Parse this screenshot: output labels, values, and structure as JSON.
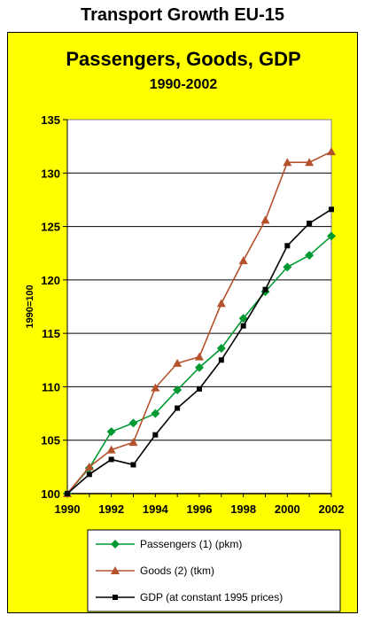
{
  "page_title": "Transport Growth EU-15",
  "chart_data": {
    "type": "line",
    "title": "Passengers, Goods, GDP",
    "subtitle": "1990-2002",
    "xlabel": "",
    "ylabel": "1990=100",
    "x": [
      1990,
      1991,
      1992,
      1993,
      1994,
      1995,
      1996,
      1997,
      1998,
      1999,
      2000,
      2001,
      2002
    ],
    "xticks": [
      "1990",
      "1992",
      "1994",
      "1996",
      "1998",
      "2000",
      "2002"
    ],
    "yticks": [
      "100",
      "105",
      "110",
      "115",
      "120",
      "125",
      "130",
      "135"
    ],
    "ylim": [
      100,
      135
    ],
    "grid": "horizontal",
    "legend_position": "bottom",
    "series": [
      {
        "name": "Passengers (1) (pkm)",
        "color": "#009933",
        "marker": "diamond",
        "values": [
          100,
          102.4,
          105.8,
          106.6,
          107.5,
          109.7,
          111.8,
          113.6,
          116.4,
          118.9,
          121.2,
          122.3,
          124.1
        ]
      },
      {
        "name": "Goods (2) (tkm)",
        "color": "#b5522e",
        "marker": "triangle",
        "values": [
          100,
          102.5,
          104.1,
          104.8,
          109.9,
          112.2,
          112.8,
          117.8,
          121.8,
          125.6,
          131.0,
          131.0,
          132.0
        ]
      },
      {
        "name": "GDP (at constant 1995 prices)",
        "color": "#000000",
        "marker": "square",
        "values": [
          100,
          101.8,
          103.2,
          102.7,
          105.5,
          108.0,
          109.8,
          112.5,
          115.7,
          119.1,
          123.2,
          125.3,
          126.6
        ]
      }
    ]
  }
}
